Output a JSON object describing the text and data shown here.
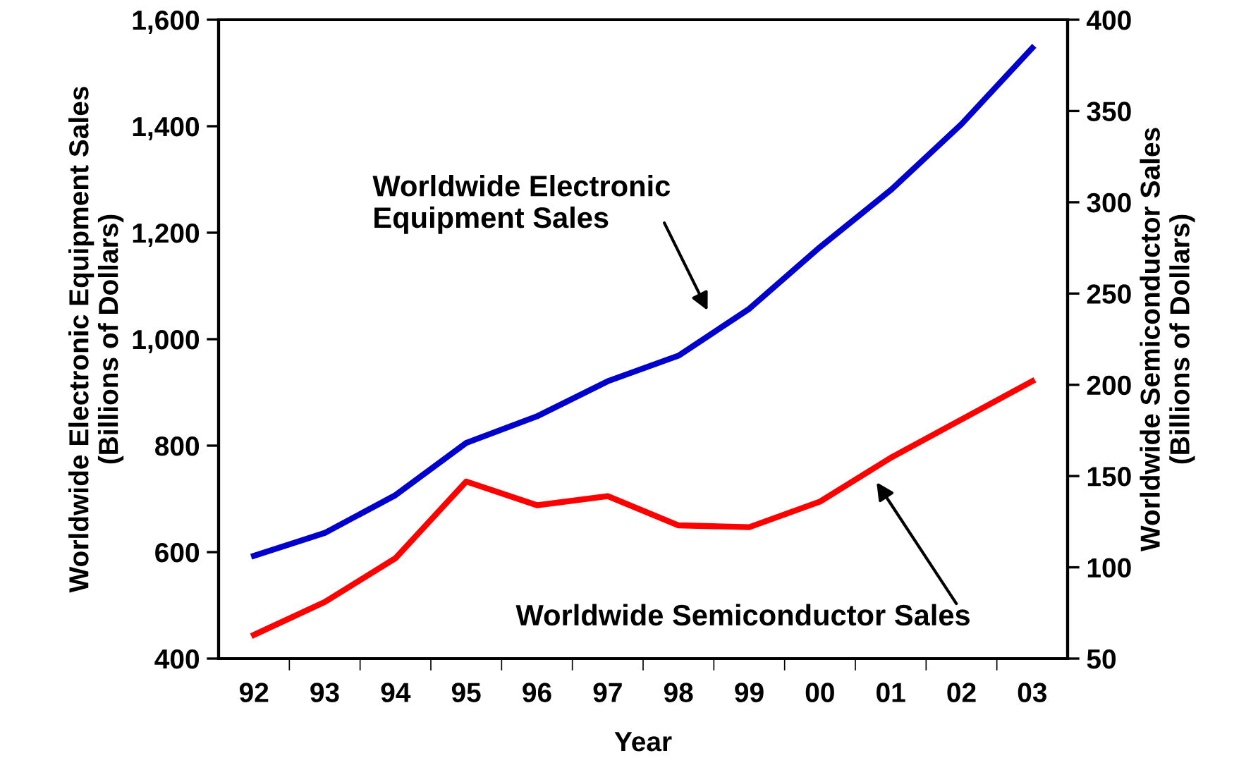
{
  "chart_data": {
    "type": "line",
    "xlabel": "Year",
    "ylabel": "Worldwide Electronic Equipment Sales\n(Billions of Dollars)",
    "y2label": "Worldwide Semiconductor Sales\n(Billions of Dollars)",
    "categories": [
      "92",
      "93",
      "94",
      "95",
      "96",
      "97",
      "98",
      "99",
      "00",
      "01",
      "02",
      "03"
    ],
    "series": [
      {
        "color": "#0000cc",
        "values": [
          593,
          636,
          707,
          805,
          855,
          921,
          969,
          1057,
          1173,
          1280,
          1404,
          1547
        ]
      },
      {
        "color": "#ff0000",
        "axis": "y2",
        "values": [
          63,
          81,
          105,
          147,
          134,
          139,
          123,
          122,
          136,
          160,
          181,
          202
        ]
      }
    ],
    "ylim": [
      400,
      1600
    ],
    "yticks": [
      400,
      600,
      800,
      {
        "value": 1000,
        "label": "1,000"
      },
      {
        "value": 1200,
        "label": "1,200"
      },
      {
        "value": 1400,
        "label": "1,400"
      },
      {
        "value": 1600,
        "label": "1,600"
      }
    ],
    "y2lim": [
      50,
      400
    ],
    "y2ticks": [
      50,
      100,
      150,
      200,
      250,
      300,
      350,
      400
    ],
    "annotations": [
      "Worldwide Electronic\nEquipment Sales",
      "Worldwide Semiconductor Sales"
    ],
    "grid": false,
    "legend": false,
    "marker": "none",
    "line_style": "solid"
  }
}
